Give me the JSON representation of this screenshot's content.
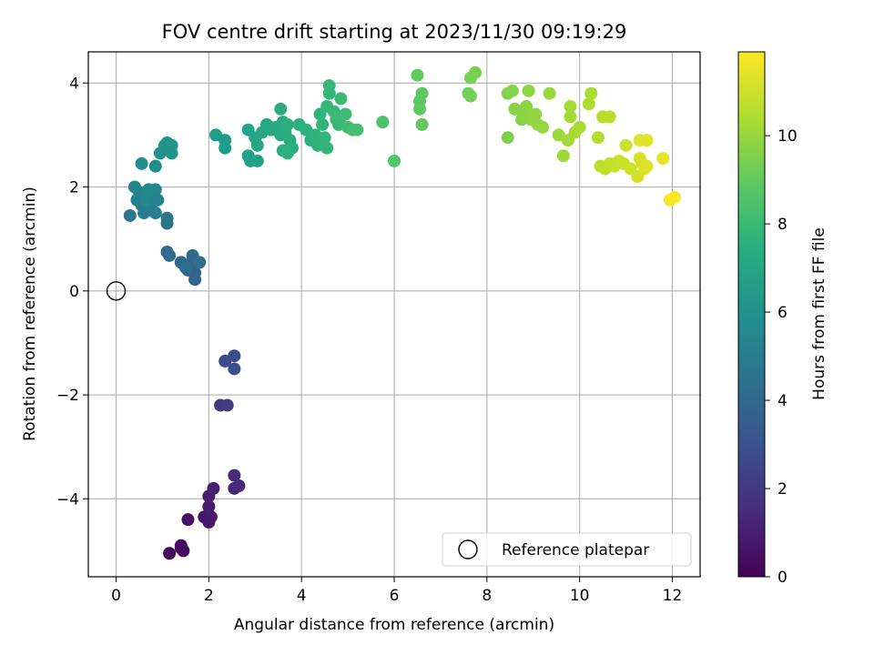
{
  "chart_data": {
    "type": "scatter",
    "title": "FOV centre drift starting at 2023/11/30 09:19:29",
    "xlabel": "Angular distance from reference (arcmin)",
    "ylabel": "Rotation from reference (arcmin)",
    "xlim": [
      -0.6,
      12.6
    ],
    "ylim": [
      -5.5,
      4.6
    ],
    "xticks": [
      "0",
      "2",
      "4",
      "6",
      "8",
      "10",
      "12"
    ],
    "yticks": [
      "−4",
      "−2",
      "0",
      "2",
      "4"
    ],
    "grid": true,
    "legend": {
      "position": "lower-right",
      "label": "Reference platepar"
    },
    "reference_point": {
      "x": 0,
      "y": 0
    },
    "colorbar": {
      "label": "Hours from first FF file",
      "range": [
        0,
        11.9
      ],
      "ticks": [
        "0",
        "2",
        "4",
        "6",
        "8",
        "10"
      ],
      "colormap": "viridis"
    },
    "points": [
      [
        1.15,
        -5.05,
        0.2
      ],
      [
        1.4,
        -4.95,
        0.3
      ],
      [
        1.45,
        -5.0,
        0.35
      ],
      [
        1.4,
        -4.9,
        0.4
      ],
      [
        1.55,
        -4.4,
        0.6
      ],
      [
        1.9,
        -4.35,
        0.7
      ],
      [
        2.0,
        -4.45,
        0.8
      ],
      [
        2.05,
        -4.35,
        0.85
      ],
      [
        2.0,
        -4.15,
        0.9
      ],
      [
        2.0,
        -3.95,
        1.0
      ],
      [
        2.1,
        -3.8,
        1.1
      ],
      [
        2.55,
        -3.8,
        1.3
      ],
      [
        2.65,
        -3.75,
        1.4
      ],
      [
        2.55,
        -3.55,
        1.5
      ],
      [
        2.25,
        -2.2,
        2.0
      ],
      [
        2.4,
        -2.2,
        2.1
      ],
      [
        2.35,
        -1.35,
        2.7
      ],
      [
        2.55,
        -1.25,
        2.8
      ],
      [
        2.55,
        -1.5,
        2.9
      ],
      [
        1.75,
        0.55,
        3.5
      ],
      [
        1.6,
        0.5,
        3.6
      ],
      [
        1.55,
        0.4,
        3.7
      ],
      [
        1.7,
        0.35,
        3.75
      ],
      [
        1.7,
        0.22,
        3.8
      ],
      [
        1.4,
        0.55,
        3.9
      ],
      [
        1.5,
        0.5,
        3.95
      ],
      [
        1.65,
        0.68,
        4.0
      ],
      [
        1.1,
        0.75,
        4.1
      ],
      [
        1.15,
        0.68,
        4.15
      ],
      [
        1.5,
        0.45,
        4.2
      ],
      [
        1.8,
        0.55,
        4.25
      ],
      [
        1.1,
        1.3,
        4.6
      ],
      [
        1.1,
        1.4,
        4.7
      ],
      [
        0.3,
        1.45,
        4.8
      ],
      [
        0.6,
        1.5,
        4.9
      ],
      [
        0.7,
        1.55,
        5.0
      ],
      [
        0.55,
        1.65,
        5.0
      ],
      [
        0.75,
        1.6,
        5.1
      ],
      [
        0.85,
        1.5,
        5.1
      ],
      [
        0.45,
        1.75,
        5.2
      ],
      [
        0.6,
        1.85,
        5.2
      ],
      [
        0.75,
        1.9,
        5.3
      ],
      [
        0.9,
        1.75,
        5.3
      ],
      [
        0.4,
        2.0,
        5.4
      ],
      [
        0.5,
        1.9,
        5.4
      ],
      [
        0.85,
        1.95,
        5.5
      ],
      [
        0.65,
        1.75,
        5.5
      ],
      [
        0.7,
        1.95,
        5.6
      ],
      [
        0.55,
        2.45,
        5.7
      ],
      [
        0.85,
        2.4,
        5.8
      ],
      [
        0.95,
        2.65,
        6.0
      ],
      [
        1.05,
        2.8,
        6.05
      ],
      [
        1.1,
        2.85,
        6.1
      ],
      [
        1.2,
        2.8,
        6.15
      ],
      [
        1.2,
        2.65,
        6.2
      ],
      [
        2.15,
        3.0,
        6.5
      ],
      [
        2.35,
        2.9,
        6.55
      ],
      [
        2.35,
        2.75,
        6.6
      ],
      [
        2.85,
        2.6,
        6.8
      ],
      [
        2.9,
        2.5,
        6.85
      ],
      [
        3.05,
        2.5,
        6.9
      ],
      [
        2.85,
        3.1,
        6.9
      ],
      [
        3.0,
        2.95,
        7.0
      ],
      [
        3.05,
        2.8,
        7.0
      ],
      [
        3.15,
        3.05,
        7.05
      ],
      [
        3.25,
        3.2,
        7.1
      ],
      [
        3.35,
        3.1,
        7.15
      ],
      [
        3.45,
        3.15,
        7.2
      ],
      [
        3.55,
        3.0,
        7.25
      ],
      [
        3.6,
        3.25,
        7.3
      ],
      [
        3.55,
        3.5,
        7.35
      ],
      [
        3.65,
        3.05,
        7.35
      ],
      [
        3.7,
        3.2,
        7.4
      ],
      [
        3.75,
        2.9,
        7.4
      ],
      [
        3.6,
        2.7,
        7.45
      ],
      [
        3.7,
        2.65,
        7.5
      ],
      [
        3.8,
        2.75,
        7.5
      ],
      [
        3.95,
        3.2,
        7.55
      ],
      [
        4.1,
        3.1,
        7.6
      ],
      [
        4.2,
        2.9,
        7.6
      ],
      [
        4.3,
        3.0,
        7.65
      ],
      [
        4.35,
        2.8,
        7.7
      ],
      [
        4.4,
        3.4,
        7.7
      ],
      [
        4.45,
        3.2,
        7.75
      ],
      [
        4.5,
        2.95,
        7.8
      ],
      [
        4.55,
        2.75,
        7.8
      ],
      [
        4.55,
        3.55,
        7.85
      ],
      [
        4.6,
        3.8,
        7.9
      ],
      [
        4.6,
        3.95,
        7.95
      ],
      [
        4.7,
        3.45,
        8.0
      ],
      [
        4.75,
        3.3,
        8.0
      ],
      [
        4.8,
        3.2,
        8.05
      ],
      [
        4.85,
        3.35,
        8.1
      ],
      [
        4.85,
        3.7,
        8.1
      ],
      [
        4.95,
        3.4,
        8.15
      ],
      [
        5.0,
        3.15,
        8.2
      ],
      [
        5.1,
        3.1,
        8.25
      ],
      [
        5.2,
        3.1,
        8.3
      ],
      [
        5.75,
        3.25,
        8.5
      ],
      [
        6.0,
        2.5,
        8.6
      ],
      [
        6.55,
        3.65,
        8.8
      ],
      [
        6.6,
        3.8,
        8.85
      ],
      [
        6.55,
        3.5,
        8.9
      ],
      [
        6.6,
        3.2,
        8.95
      ],
      [
        6.5,
        4.15,
        9.0
      ],
      [
        7.6,
        3.8,
        9.3
      ],
      [
        7.65,
        3.75,
        9.35
      ],
      [
        7.65,
        4.1,
        9.4
      ],
      [
        7.75,
        4.2,
        9.45
      ],
      [
        8.45,
        2.95,
        9.6
      ],
      [
        8.45,
        3.8,
        9.6
      ],
      [
        8.55,
        3.85,
        9.65
      ],
      [
        8.6,
        3.5,
        9.7
      ],
      [
        8.75,
        3.3,
        9.7
      ],
      [
        8.8,
        3.4,
        9.75
      ],
      [
        8.85,
        3.55,
        9.8
      ],
      [
        8.9,
        3.85,
        9.85
      ],
      [
        8.95,
        3.3,
        9.85
      ],
      [
        9.05,
        3.4,
        9.9
      ],
      [
        9.1,
        3.2,
        9.95
      ],
      [
        9.2,
        3.15,
        10.0
      ],
      [
        9.35,
        3.8,
        10.05
      ],
      [
        9.55,
        3.0,
        10.1
      ],
      [
        9.65,
        2.6,
        10.15
      ],
      [
        9.75,
        2.9,
        10.2
      ],
      [
        9.8,
        3.35,
        10.25
      ],
      [
        9.8,
        3.55,
        10.25
      ],
      [
        9.9,
        3.05,
        10.3
      ],
      [
        10.0,
        3.15,
        10.35
      ],
      [
        10.2,
        3.6,
        10.4
      ],
      [
        10.25,
        3.8,
        10.4
      ],
      [
        10.4,
        2.95,
        10.5
      ],
      [
        10.5,
        3.35,
        10.55
      ],
      [
        10.65,
        3.35,
        10.6
      ],
      [
        10.45,
        2.4,
        10.7
      ],
      [
        10.55,
        2.35,
        10.75
      ],
      [
        10.65,
        2.45,
        10.8
      ],
      [
        10.75,
        2.4,
        10.85
      ],
      [
        10.85,
        2.5,
        10.9
      ],
      [
        10.95,
        2.45,
        10.95
      ],
      [
        11.0,
        2.8,
        11.0
      ],
      [
        11.1,
        2.35,
        11.05
      ],
      [
        11.25,
        2.2,
        11.1
      ],
      [
        11.3,
        2.55,
        11.15
      ],
      [
        11.35,
        2.45,
        11.2
      ],
      [
        11.4,
        2.35,
        11.25
      ],
      [
        11.45,
        2.4,
        11.3
      ],
      [
        11.3,
        2.9,
        11.3
      ],
      [
        11.45,
        2.9,
        11.35
      ],
      [
        11.8,
        2.55,
        11.5
      ],
      [
        11.95,
        1.75,
        11.8
      ],
      [
        12.05,
        1.8,
        11.85
      ]
    ]
  }
}
